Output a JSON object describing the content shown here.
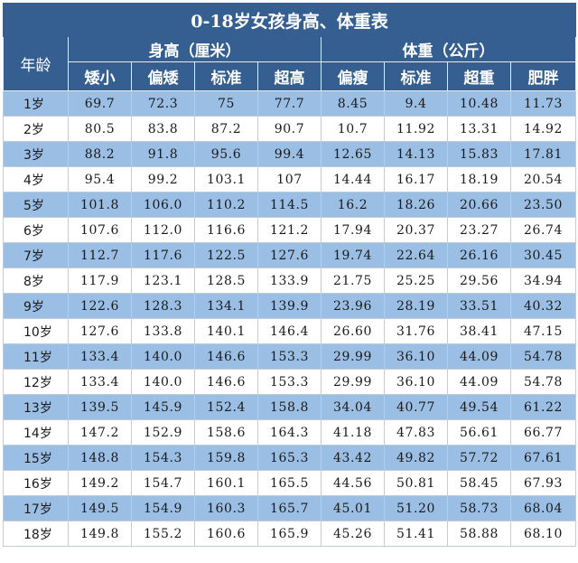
{
  "title": "0-18岁女孩身高、体重表",
  "age_header": "年龄",
  "height_group": "身高（厘米）",
  "weight_group": "体重（公斤）",
  "height_columns": [
    "矮小",
    "偏矮",
    "标准",
    "超高"
  ],
  "weight_columns": [
    "偏瘦",
    "标准",
    "超重",
    "肥胖"
  ],
  "rows": [
    {
      "age": "1岁",
      "values": [
        "69.7",
        "72.3",
        "75",
        "77.7",
        "8.45",
        "9.4",
        "10.48",
        "11.73"
      ]
    },
    {
      "age": "2岁",
      "values": [
        "80.5",
        "83.8",
        "87.2",
        "90.7",
        "10.7",
        "11.92",
        "13.31",
        "14.92"
      ]
    },
    {
      "age": "3岁",
      "values": [
        "88.2",
        "91.8",
        "95.6",
        "99.4",
        "12.65",
        "14.13",
        "15.83",
        "17.81"
      ]
    },
    {
      "age": "4岁",
      "values": [
        "95.4",
        "99.2",
        "103.1",
        "107",
        "14.44",
        "16.17",
        "18.19",
        "20.54"
      ]
    },
    {
      "age": "5岁",
      "values": [
        "101.8",
        "106.0",
        "110.2",
        "114.5",
        "16.2",
        "18.26",
        "20.66",
        "23.50"
      ]
    },
    {
      "age": "6岁",
      "values": [
        "107.6",
        "112.0",
        "116.6",
        "121.2",
        "17.94",
        "20.37",
        "23.27",
        "26.74"
      ]
    },
    {
      "age": "7岁",
      "values": [
        "112.7",
        "117.6",
        "122.5",
        "127.6",
        "19.74",
        "22.64",
        "26.16",
        "30.45"
      ]
    },
    {
      "age": "8岁",
      "values": [
        "117.9",
        "123.1",
        "128.5",
        "133.9",
        "21.75",
        "25.25",
        "29.56",
        "34.94"
      ]
    },
    {
      "age": "9岁",
      "values": [
        "122.6",
        "128.3",
        "134.1",
        "139.9",
        "23.96",
        "28.19",
        "33.51",
        "40.32"
      ]
    },
    {
      "age": "10岁",
      "values": [
        "127.6",
        "133.8",
        "140.1",
        "146.4",
        "26.60",
        "31.76",
        "38.41",
        "47.15"
      ]
    },
    {
      "age": "11岁",
      "values": [
        "133.4",
        "140.0",
        "146.6",
        "153.3",
        "29.99",
        "36.10",
        "44.09",
        "54.78"
      ]
    },
    {
      "age": "12岁",
      "values": [
        "133.4",
        "140.0",
        "146.6",
        "153.3",
        "29.99",
        "36.10",
        "44.09",
        "54.78"
      ]
    },
    {
      "age": "13岁",
      "values": [
        "139.5",
        "145.9",
        "152.4",
        "158.8",
        "34.04",
        "40.77",
        "49.54",
        "61.22"
      ]
    },
    {
      "age": "14岁",
      "values": [
        "147.2",
        "152.9",
        "158.6",
        "164.3",
        "41.18",
        "47.83",
        "56.61",
        "66.77"
      ]
    },
    {
      "age": "15岁",
      "values": [
        "148.8",
        "154.3",
        "159.8",
        "165.3",
        "43.42",
        "49.82",
        "57.72",
        "67.61"
      ]
    },
    {
      "age": "16岁",
      "values": [
        "149.2",
        "154.7",
        "160.1",
        "165.5",
        "44.56",
        "50.81",
        "58.45",
        "67.93"
      ]
    },
    {
      "age": "17岁",
      "values": [
        "149.5",
        "154.9",
        "160.3",
        "165.7",
        "45.01",
        "51.20",
        "58.73",
        "68.04"
      ]
    },
    {
      "age": "18岁",
      "values": [
        "149.8",
        "155.2",
        "160.6",
        "165.9",
        "45.26",
        "51.41",
        "58.88",
        "68.10"
      ]
    }
  ],
  "colors": {
    "header": "#355f91",
    "stripe": "#9bbee4",
    "plain": "#ffffff"
  }
}
